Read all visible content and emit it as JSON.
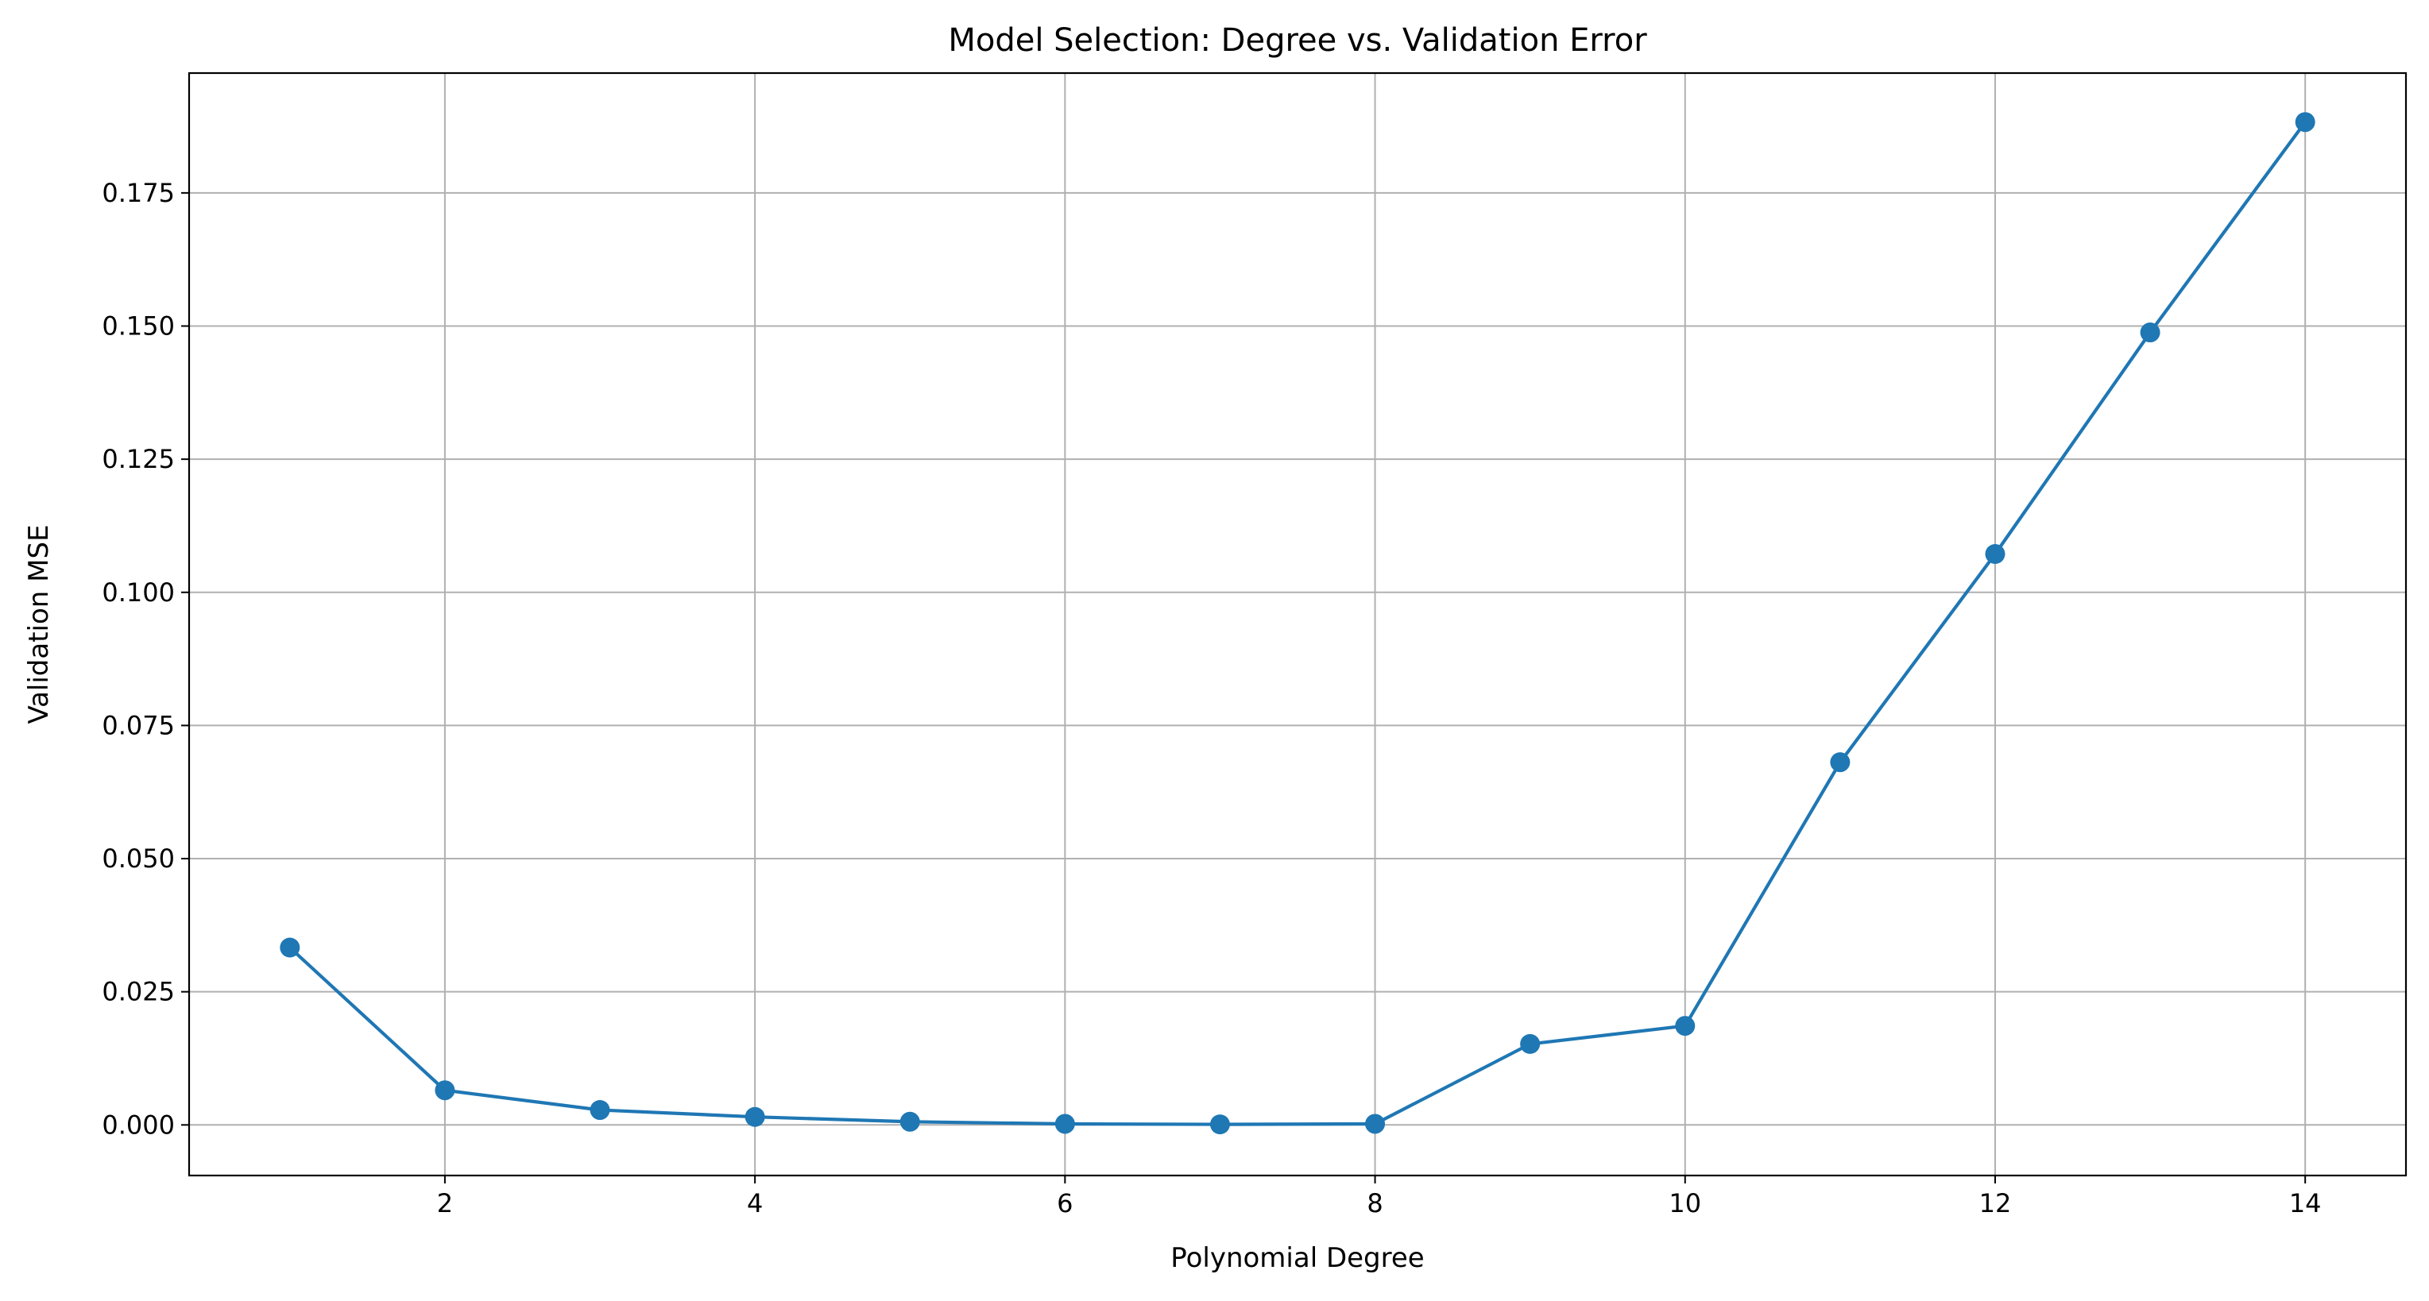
{
  "chart_data": {
    "type": "line",
    "title": "Model Selection: Degree vs. Validation Error",
    "xlabel": "Polynomial Degree",
    "ylabel": "Validation MSE",
    "xlim": [
      0.35,
      14.65
    ],
    "ylim": [
      -0.0095,
      0.1975
    ],
    "xticks": [
      2,
      4,
      6,
      8,
      10,
      12,
      14
    ],
    "xtick_labels": [
      "2",
      "4",
      "6",
      "8",
      "10",
      "12",
      "14"
    ],
    "yticks": [
      0.0,
      0.025,
      0.05,
      0.075,
      0.1,
      0.125,
      0.15,
      0.175
    ],
    "ytick_labels": [
      "0.000",
      "0.025",
      "0.050",
      "0.075",
      "0.100",
      "0.125",
      "0.150",
      "0.175"
    ],
    "grid": true,
    "marker": "circle",
    "series": [
      {
        "color": "#1f77b4",
        "x": [
          1,
          2,
          3,
          4,
          5,
          6,
          7,
          8,
          9,
          10,
          11,
          12,
          13,
          14
        ],
        "y": [
          0.0333,
          0.0065,
          0.0028,
          0.0015,
          0.0006,
          0.0002,
          0.0001,
          0.0002,
          0.0152,
          0.0186,
          0.0681,
          0.1072,
          0.1488,
          0.1883
        ]
      }
    ]
  }
}
